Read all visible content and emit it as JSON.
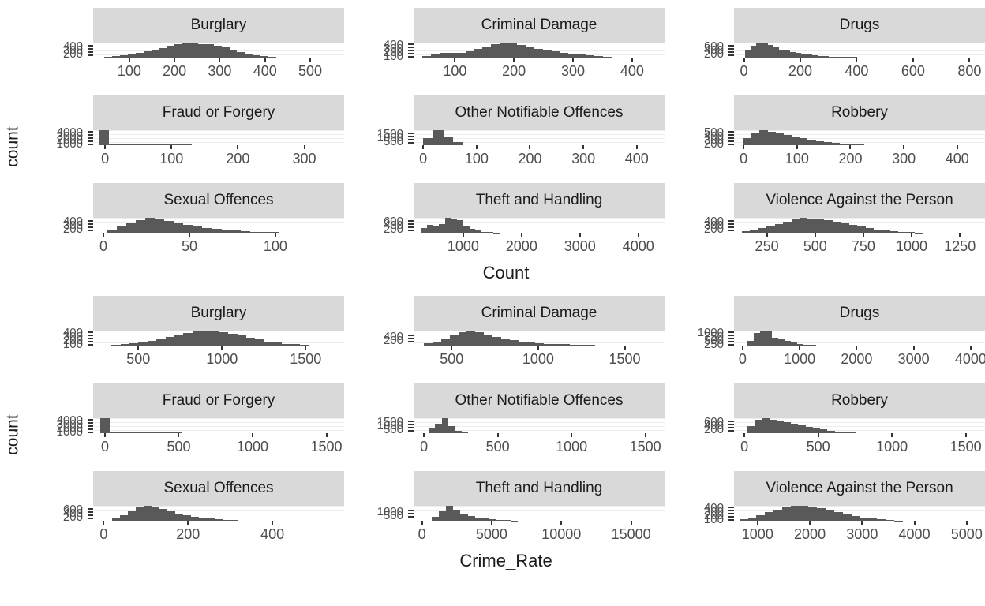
{
  "chart_data": [
    {
      "id": "count-histograms",
      "type": "histogram",
      "y_axis_title": "count",
      "x_axis_title": "Count",
      "grid": "on",
      "legend": "none",
      "facets": [
        {
          "title": "Burglary",
          "x_min": 20,
          "x_max": 575,
          "x_ticks": [
            100,
            200,
            300,
            400,
            500
          ],
          "y_tick_labels": [
            "400",
            "300",
            "200"
          ],
          "bar_start": 45,
          "bar_end": 425,
          "bins": [
            0.06,
            0.1,
            0.16,
            0.22,
            0.3,
            0.4,
            0.52,
            0.65,
            0.78,
            0.9,
            1.0,
            0.97,
            0.9,
            0.88,
            0.8,
            0.68,
            0.52,
            0.38,
            0.26,
            0.16,
            0.1,
            0.06
          ]
        },
        {
          "title": "Criminal Damage",
          "x_min": 30,
          "x_max": 455,
          "x_ticks": [
            100,
            200,
            300,
            400
          ],
          "y_tick_labels": [
            "400",
            "300",
            "200",
            "100"
          ],
          "bar_start": 45,
          "bar_end": 365,
          "bins": [
            0.12,
            0.2,
            0.3,
            0.34,
            0.3,
            0.42,
            0.58,
            0.72,
            0.88,
            1.0,
            0.96,
            0.86,
            0.72,
            0.6,
            0.5,
            0.4,
            0.32,
            0.26,
            0.2,
            0.15,
            0.1,
            0.07
          ]
        },
        {
          "title": "Drugs",
          "x_min": -35,
          "x_max": 855,
          "x_ticks": [
            0,
            200,
            400,
            600,
            800
          ],
          "y_tick_labels": [
            "600",
            "400",
            "200"
          ],
          "bar_start": 5,
          "bar_end": 400,
          "bins": [
            0.45,
            0.8,
            1.0,
            0.95,
            0.82,
            0.68,
            0.55,
            0.45,
            0.37,
            0.3,
            0.24,
            0.19,
            0.15,
            0.12,
            0.09,
            0.07,
            0.06,
            0.05,
            0.04,
            0.03
          ]
        },
        {
          "title": "Fraud or Forgery",
          "x_min": -18,
          "x_max": 360,
          "x_ticks": [
            0,
            100,
            200,
            300
          ],
          "y_tick_labels": [
            "4000",
            "3000",
            "2000",
            "1000"
          ],
          "bar_start": -8,
          "bar_end": 130,
          "bins": [
            1.0,
            0.1,
            0.04,
            0.04,
            0.04,
            0.04,
            0.04,
            0.04,
            0.04,
            0.03
          ]
        },
        {
          "title": "Other Notifiable Offences",
          "x_min": -18,
          "x_max": 452,
          "x_ticks": [
            0,
            100,
            200,
            300,
            400
          ],
          "y_tick_labels": [
            "1500",
            "1000",
            "500"
          ],
          "bar_start": 0,
          "bar_end": 75,
          "bins": [
            0.45,
            1.0,
            0.55,
            0.22
          ]
        },
        {
          "title": "Robbery",
          "x_min": -18,
          "x_max": 452,
          "x_ticks": [
            0,
            100,
            200,
            300,
            400
          ],
          "y_tick_labels": [
            "500",
            "400",
            "300",
            "200"
          ],
          "bar_start": 0,
          "bar_end": 225,
          "bins": [
            0.5,
            0.85,
            1.0,
            0.9,
            0.8,
            0.68,
            0.56,
            0.45,
            0.35,
            0.27,
            0.2,
            0.14,
            0.1,
            0.07,
            0.05
          ]
        },
        {
          "title": "Sexual Offences",
          "x_min": -6,
          "x_max": 140,
          "x_ticks": [
            0,
            50,
            100
          ],
          "y_tick_labels": [
            "400",
            "300",
            "200"
          ],
          "bar_start": 2,
          "bar_end": 102,
          "bins": [
            0.18,
            0.4,
            0.65,
            0.85,
            1.0,
            0.92,
            0.8,
            0.68,
            0.55,
            0.44,
            0.34,
            0.26,
            0.19,
            0.14,
            0.1,
            0.07,
            0.05,
            0.04
          ]
        },
        {
          "title": "Theft and Handling",
          "x_min": 150,
          "x_max": 4450,
          "x_ticks": [
            1000,
            2000,
            3000,
            4000
          ],
          "y_tick_labels": [
            "600",
            "400",
            "200"
          ],
          "bar_start": 280,
          "bar_end": 1620,
          "bins": [
            0.3,
            0.55,
            0.45,
            0.6,
            1.0,
            0.95,
            0.85,
            0.5,
            0.28,
            0.14,
            0.07,
            0.04,
            0.02
          ]
        },
        {
          "title": "Violence Against the Person",
          "x_min": 80,
          "x_max": 1380,
          "x_ticks": [
            250,
            500,
            750,
            1000,
            1250
          ],
          "y_tick_labels": [
            "400",
            "300",
            "200"
          ],
          "bar_start": 120,
          "bar_end": 1060,
          "bins": [
            0.12,
            0.2,
            0.3,
            0.45,
            0.6,
            0.75,
            0.9,
            1.0,
            0.97,
            0.92,
            0.86,
            0.76,
            0.64,
            0.52,
            0.4,
            0.3,
            0.22,
            0.15,
            0.1,
            0.06,
            0.04,
            0.02
          ]
        }
      ]
    },
    {
      "id": "crime-rate-histograms",
      "type": "histogram",
      "y_axis_title": "count",
      "x_axis_title": "Crime_Rate",
      "grid": "on",
      "legend": "none",
      "facets": [
        {
          "title": "Burglary",
          "x_min": 230,
          "x_max": 1730,
          "x_ticks": [
            500,
            1000,
            1500
          ],
          "y_tick_labels": [
            "400",
            "300",
            "200",
            "100"
          ],
          "bar_start": 340,
          "bar_end": 1520,
          "bins": [
            0.05,
            0.09,
            0.15,
            0.22,
            0.32,
            0.44,
            0.58,
            0.72,
            0.86,
            0.96,
            1.0,
            0.96,
            0.88,
            0.78,
            0.66,
            0.52,
            0.4,
            0.29,
            0.2,
            0.13,
            0.08,
            0.05
          ]
        },
        {
          "title": "Criminal Damage",
          "x_min": 280,
          "x_max": 1730,
          "x_ticks": [
            500,
            1000,
            1500
          ],
          "y_tick_labels": [
            "400",
            "200"
          ],
          "bar_start": 340,
          "bar_end": 1330,
          "bins": [
            0.14,
            0.28,
            0.48,
            0.72,
            0.92,
            1.0,
            0.92,
            0.76,
            0.6,
            0.47,
            0.36,
            0.28,
            0.22,
            0.17,
            0.13,
            0.1,
            0.08,
            0.06,
            0.05,
            0.04
          ]
        },
        {
          "title": "Drugs",
          "x_min": -150,
          "x_max": 4250,
          "x_ticks": [
            0,
            1000,
            2000,
            3000,
            4000
          ],
          "y_tick_labels": [
            "1000",
            "750",
            "500",
            "250"
          ],
          "bar_start": 80,
          "bar_end": 1400,
          "bins": [
            0.3,
            0.85,
            1.0,
            0.95,
            0.55,
            0.5,
            0.3,
            0.27,
            0.12,
            0.06,
            0.04,
            0.02
          ]
        },
        {
          "title": "Fraud or Forgery",
          "x_min": -80,
          "x_max": 1620,
          "x_ticks": [
            0,
            500,
            1000,
            1500
          ],
          "y_tick_labels": [
            "4000",
            "3000",
            "2000",
            "1000"
          ],
          "bar_start": -30,
          "bar_end": 520,
          "bins": [
            1.0,
            0.08,
            0.04,
            0.04,
            0.04,
            0.04,
            0.04,
            0.03
          ]
        },
        {
          "title": "Other Notifiable Offences",
          "x_min": -70,
          "x_max": 1630,
          "x_ticks": [
            0,
            500,
            1000,
            1500
          ],
          "y_tick_labels": [
            "1500",
            "1000",
            "500"
          ],
          "bar_start": 30,
          "bar_end": 300,
          "bins": [
            0.35,
            0.65,
            1.0,
            0.5,
            0.18,
            0.07
          ]
        },
        {
          "title": "Robbery",
          "x_min": -70,
          "x_max": 1630,
          "x_ticks": [
            0,
            500,
            1000,
            1500
          ],
          "y_tick_labels": [
            "600",
            "400",
            "200"
          ],
          "bar_start": 20,
          "bar_end": 760,
          "bins": [
            0.45,
            0.9,
            1.0,
            0.92,
            0.84,
            0.74,
            0.63,
            0.52,
            0.42,
            0.32,
            0.24,
            0.17,
            0.11,
            0.07,
            0.05
          ]
        },
        {
          "title": "Sexual Offences",
          "x_min": -25,
          "x_max": 570,
          "x_ticks": [
            0,
            200,
            400
          ],
          "y_tick_labels": [
            "600",
            "400",
            "200"
          ],
          "bar_start": 20,
          "bar_end": 320,
          "bins": [
            0.18,
            0.38,
            0.62,
            0.88,
            1.0,
            0.92,
            0.78,
            0.63,
            0.5,
            0.38,
            0.28,
            0.2,
            0.14,
            0.1,
            0.07,
            0.05
          ]
        },
        {
          "title": "Theft and Handling",
          "x_min": -600,
          "x_max": 17400,
          "x_ticks": [
            0,
            5000,
            10000,
            15000
          ],
          "y_tick_labels": [
            "1000",
            "500"
          ],
          "bar_start": 700,
          "bar_end": 6900,
          "bins": [
            0.25,
            0.65,
            1.0,
            0.75,
            0.45,
            0.32,
            0.22,
            0.14,
            0.08,
            0.05,
            0.03,
            0.02
          ]
        },
        {
          "title": "Violence Against the Person",
          "x_min": 550,
          "x_max": 5350,
          "x_ticks": [
            1000,
            2000,
            3000,
            4000,
            5000
          ],
          "y_tick_labels": [
            "400",
            "300",
            "200",
            "100"
          ],
          "bar_start": 650,
          "bar_end": 3780,
          "bins": [
            0.08,
            0.2,
            0.38,
            0.58,
            0.76,
            0.9,
            1.0,
            0.98,
            0.92,
            0.84,
            0.72,
            0.58,
            0.44,
            0.32,
            0.22,
            0.14,
            0.08,
            0.04,
            0.02
          ]
        }
      ]
    }
  ],
  "style": {
    "strip_background": "#d9d9d9",
    "bar_fill": "#595959",
    "axis_text_color": "#4d4d4d",
    "tick_mark_color": "#333333",
    "gridline_color": "#ededed"
  }
}
